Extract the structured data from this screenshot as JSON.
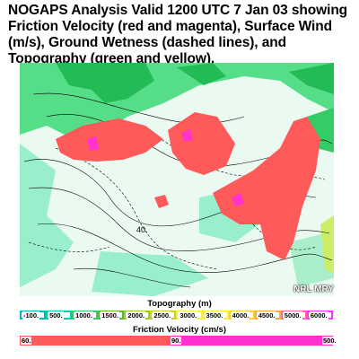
{
  "title": "NOGAPS Analysis Valid 1200 UTC 7 Jan 03 showing Friction Velocity (red and magenta), Surface Wind (m/s), Ground Wetness (dashed lines), and Topography (green and yellow).",
  "map": {
    "contour_label": "40.",
    "credit": "NRL MRY"
  },
  "topography_legend": {
    "title": "Topography (m)",
    "labels": [
      "-100.",
      "500.",
      "1000.",
      "1500.",
      "2000.",
      "2500.",
      "3000.",
      "3500.",
      "4000.",
      "4500.",
      "5000.",
      "6000."
    ],
    "colors": [
      "#00bbbb",
      "#00ccaa",
      "#33cc66",
      "#55bb33",
      "#99cc33",
      "#cccc33",
      "#eeee55",
      "#ffee33",
      "#ffcc33",
      "#ffaa33",
      "#ff66aa",
      "#ff33ff"
    ]
  },
  "friction_legend": {
    "title": "Friction Velocity (cm/s)",
    "labels": [
      "60.",
      "90.",
      "500."
    ],
    "colors": [
      "#ff5a5a",
      "#ff2fd0"
    ]
  },
  "colors": {
    "land": "#ffffff",
    "wet_land": "#88ddbb",
    "highland": "#22bb55",
    "friction_low": "#ff5a5a",
    "friction_high": "#ff33cc"
  }
}
